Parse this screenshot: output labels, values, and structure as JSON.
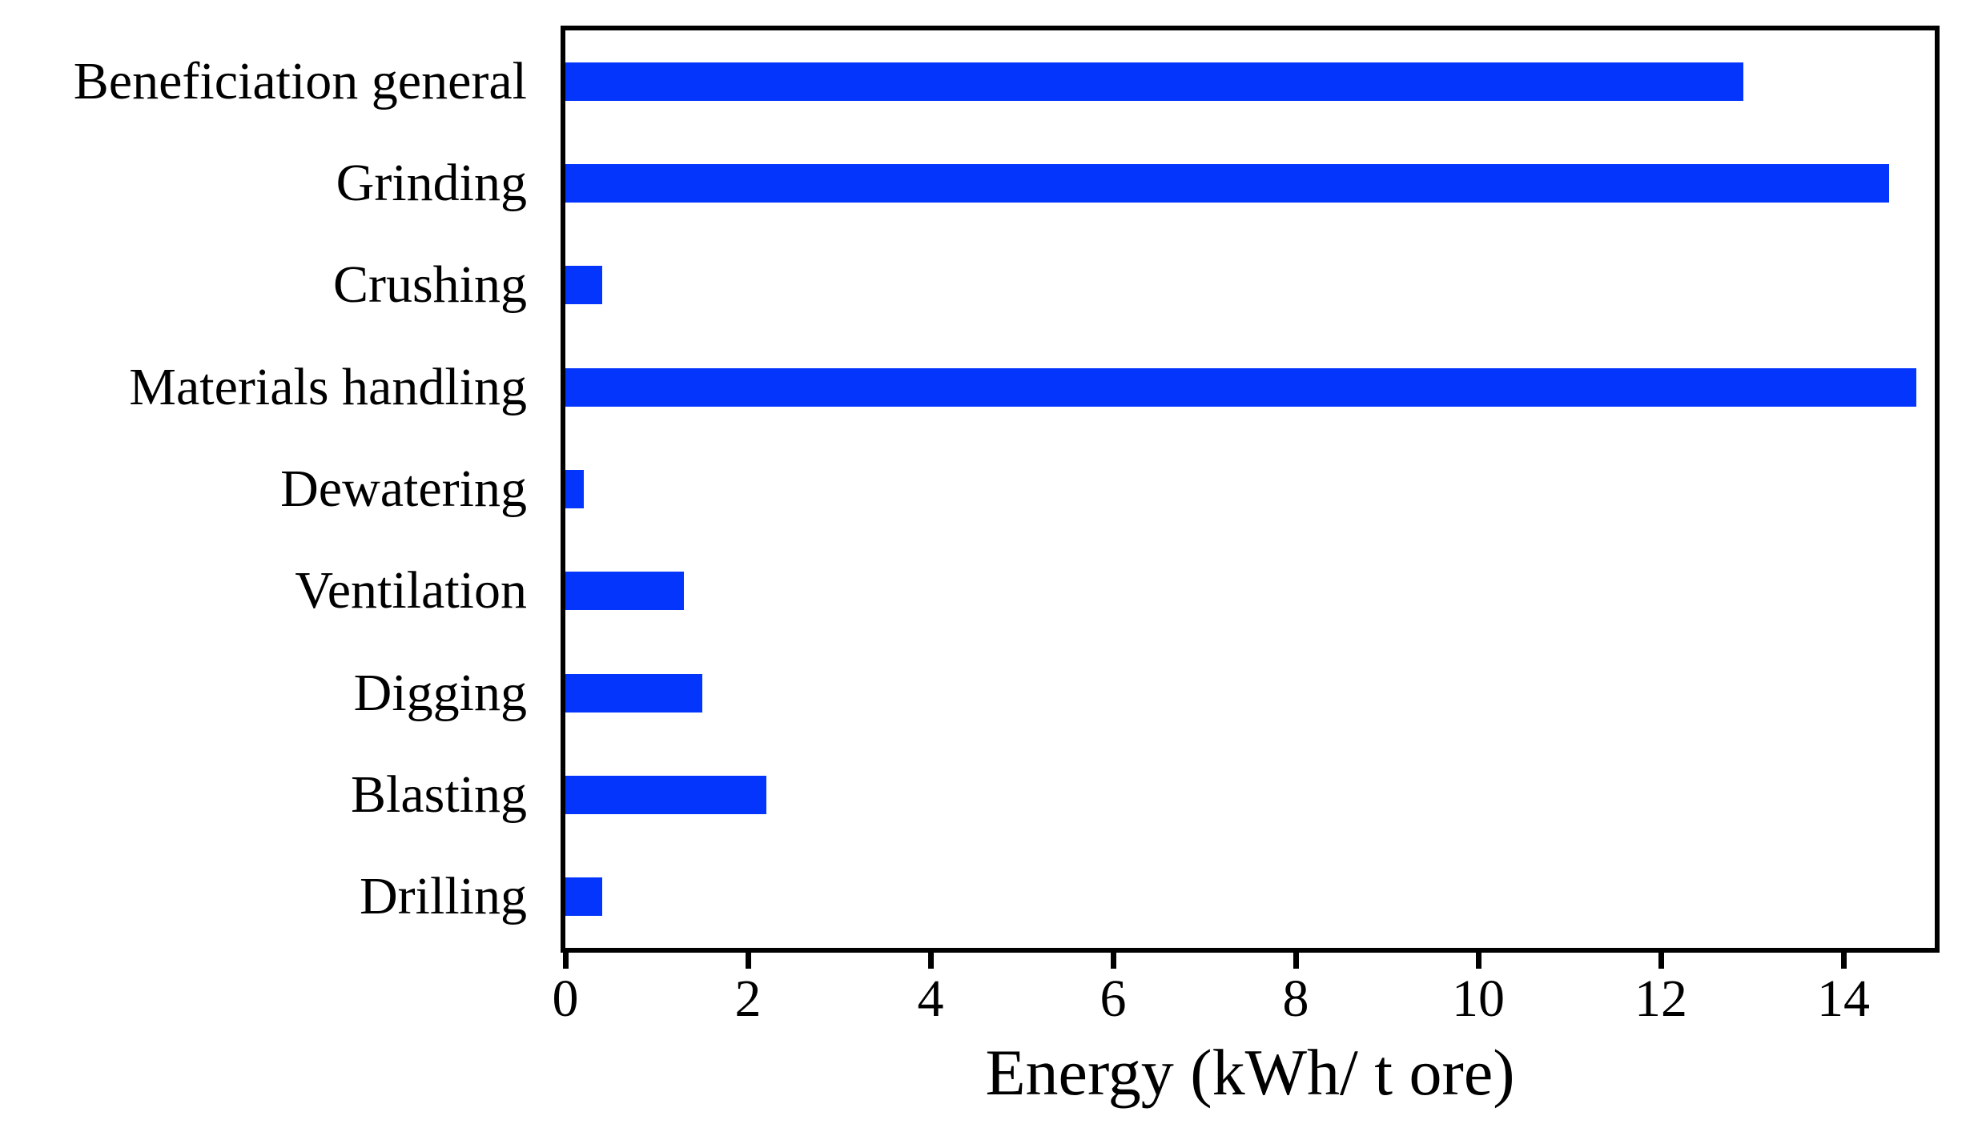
{
  "chart_data": {
    "type": "bar",
    "orientation": "horizontal",
    "categories": [
      "Beneficiation general",
      "Grinding",
      "Crushing",
      "Materials handling",
      "Dewatering",
      "Ventilation",
      "Digging",
      "Blasting",
      "Drilling"
    ],
    "values": [
      12.9,
      14.5,
      0.4,
      14.8,
      0.2,
      1.3,
      1.5,
      2.2,
      0.4
    ],
    "title": "",
    "xlabel": "Energy (kWh/ t ore)",
    "ylabel": "",
    "xlim": [
      0,
      15
    ],
    "xticks": [
      0,
      2,
      4,
      6,
      8,
      10,
      12,
      14
    ],
    "grid": false,
    "legend_position": "none",
    "bar_color": "#0435FC",
    "frame_color": "#000000",
    "text_color": "#000000",
    "background_color": "#FFFFFF"
  }
}
